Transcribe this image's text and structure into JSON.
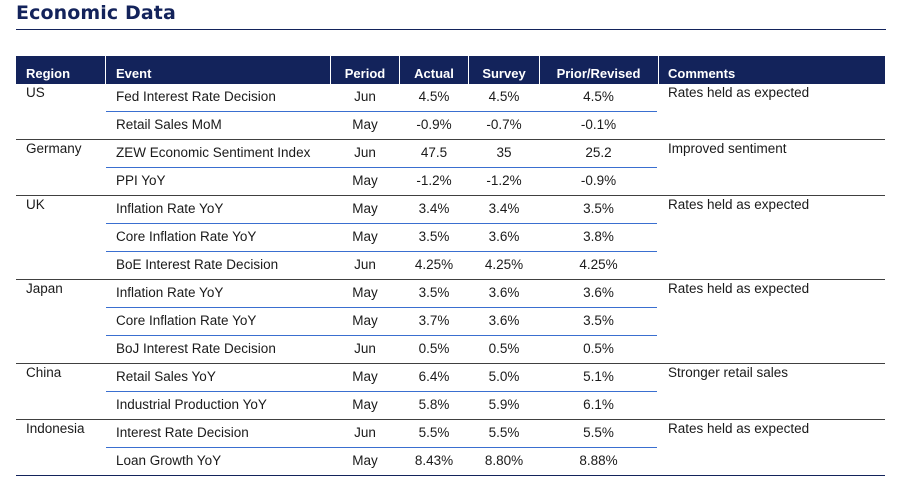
{
  "title": "Economic Data",
  "headers": {
    "region": "Region",
    "event": "Event",
    "period": "Period",
    "actual": "Actual",
    "survey": "Survey",
    "prior": "Prior/Revised",
    "comments": "Comments"
  },
  "groups": [
    {
      "region": "US",
      "comment": "Rates held as expected",
      "rows": [
        {
          "event": "Fed Interest Rate Decision",
          "period": "Jun",
          "actual": "4.5%",
          "survey": "4.5%",
          "prior": "4.5%"
        },
        {
          "event": "Retail Sales MoM",
          "period": "May",
          "actual": "-0.9%",
          "survey": "-0.7%",
          "prior": "-0.1%"
        }
      ]
    },
    {
      "region": "Germany",
      "comment": "Improved sentiment",
      "rows": [
        {
          "event": "ZEW Economic Sentiment Index",
          "period": "Jun",
          "actual": "47.5",
          "survey": "35",
          "prior": "25.2"
        },
        {
          "event": "PPI YoY",
          "period": "May",
          "actual": "-1.2%",
          "survey": "-1.2%",
          "prior": "-0.9%"
        }
      ]
    },
    {
      "region": "UK",
      "comment": "Rates held as expected",
      "rows": [
        {
          "event": "Inflation Rate YoY",
          "period": "May",
          "actual": "3.4%",
          "survey": "3.4%",
          "prior": "3.5%"
        },
        {
          "event": "Core Inflation Rate YoY",
          "period": "May",
          "actual": "3.5%",
          "survey": "3.6%",
          "prior": "3.8%"
        },
        {
          "event": "BoE Interest Rate Decision",
          "period": "Jun",
          "actual": "4.25%",
          "survey": "4.25%",
          "prior": "4.25%"
        }
      ]
    },
    {
      "region": "Japan",
      "comment": "Rates held as expected",
      "rows": [
        {
          "event": "Inflation Rate YoY",
          "period": "May",
          "actual": "3.5%",
          "survey": "3.6%",
          "prior": "3.6%"
        },
        {
          "event": "Core Inflation Rate YoY",
          "period": "May",
          "actual": "3.7%",
          "survey": "3.6%",
          "prior": "3.5%"
        },
        {
          "event": "BoJ Interest Rate Decision",
          "period": "Jun",
          "actual": "0.5%",
          "survey": "0.5%",
          "prior": "0.5%"
        }
      ]
    },
    {
      "region": "China",
      "comment": "Stronger retail sales",
      "rows": [
        {
          "event": "Retail Sales YoY",
          "period": "May",
          "actual": "6.4%",
          "survey": "5.0%",
          "prior": "5.1%"
        },
        {
          "event": "Industrial Production YoY",
          "period": "May",
          "actual": "5.8%",
          "survey": "5.9%",
          "prior": "6.1%"
        }
      ]
    },
    {
      "region": "Indonesia",
      "comment": "Rates held as expected",
      "rows": [
        {
          "event": "Interest Rate Decision",
          "period": "Jun",
          "actual": "5.5%",
          "survey": "5.5%",
          "prior": "5.5%"
        },
        {
          "event": "Loan Growth YoY",
          "period": "May",
          "actual": "8.43%",
          "survey": "8.80%",
          "prior": "8.88%"
        }
      ]
    }
  ],
  "colors": {
    "header_bg": "#13235b",
    "row_divider": "#3a6fd0",
    "group_divider": "#404040"
  }
}
